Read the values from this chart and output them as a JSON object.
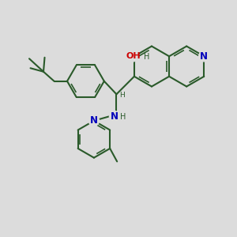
{
  "bg_color": "#dcdcdc",
  "bond_color": "#2a5a2a",
  "N_color": "#0000bb",
  "O_color": "#cc0000",
  "lw": 1.5,
  "lw2": 1.2,
  "fs": 8.5,
  "fig_w": 3.0,
  "fig_h": 3.0,
  "dpi": 100,
  "xlim": [
    0,
    10
  ],
  "ylim": [
    0,
    10
  ]
}
